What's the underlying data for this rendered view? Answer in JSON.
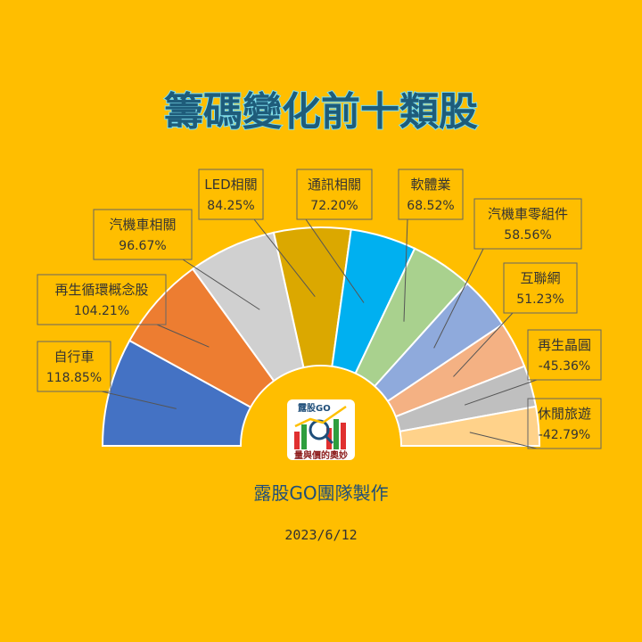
{
  "title": "籌碼變化前十類股",
  "credit": "露股GO團隊製作",
  "date": "2023/6/12",
  "logo": {
    "top_text": "露股GO",
    "bottom_text": "量與價的奧妙"
  },
  "chart_data": {
    "type": "pie",
    "variant": "half-donut",
    "series": [
      {
        "name": "自行車",
        "value": 118.85,
        "label": "118.85%",
        "color": "#4472C4"
      },
      {
        "name": "再生循環概念股",
        "value": 104.21,
        "label": "104.21%",
        "color": "#ED7D31"
      },
      {
        "name": "汽機車相關",
        "value": 96.67,
        "label": "96.67%",
        "color": "#D0D0D0"
      },
      {
        "name": "LED相關",
        "value": 84.25,
        "label": "84.25%",
        "color": "#DBA800"
      },
      {
        "name": "通訊相關",
        "value": 72.2,
        "label": "72.20%",
        "color": "#00B0F0"
      },
      {
        "name": "軟體業",
        "value": 68.52,
        "label": "68.52%",
        "color": "#A9D18E"
      },
      {
        "name": "汽機車零組件",
        "value": 58.56,
        "label": "58.56%",
        "color": "#8FAADC"
      },
      {
        "name": "互聯網",
        "value": 51.23,
        "label": "51.23%",
        "color": "#F4B183"
      },
      {
        "name": "再生晶圓",
        "value": -45.36,
        "label": "-45.36%",
        "color": "#BFBFBF"
      },
      {
        "name": "休閒旅遊",
        "value": -42.79,
        "label": "-42.79%",
        "color": "#FFD28A"
      }
    ]
  }
}
